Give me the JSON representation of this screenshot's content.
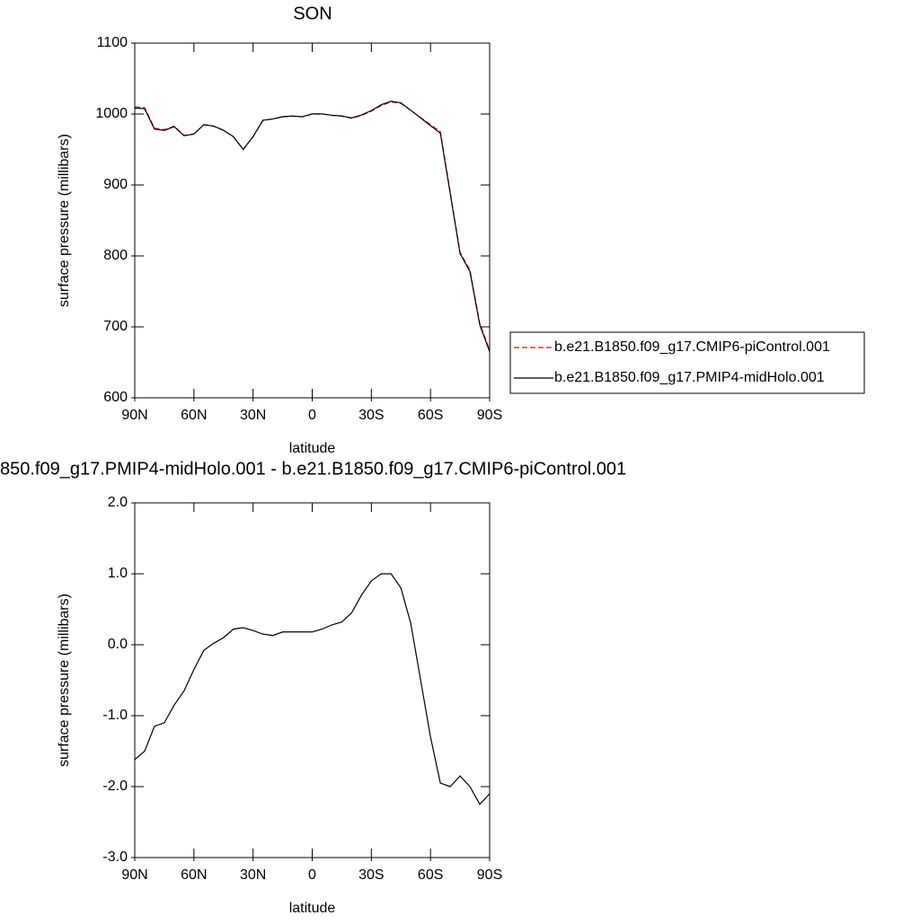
{
  "chart_data": [
    {
      "type": "line",
      "title": "SON",
      "xlabel": "latitude",
      "ylabel": "surface pressure (millibars)",
      "x": [
        90,
        85,
        80,
        75,
        70,
        65,
        60,
        55,
        50,
        45,
        40,
        35,
        30,
        25,
        20,
        15,
        10,
        5,
        0,
        -5,
        -10,
        -15,
        -20,
        -25,
        -30,
        -35,
        -40,
        -45,
        -50,
        -55,
        -60,
        -65,
        -70,
        -75,
        -80,
        -85,
        -90
      ],
      "series": [
        {
          "name": "b.e21.B1850.f09_g17.CMIP6-piControl.001",
          "color": "#ff0000",
          "line_style": "dashed",
          "values": [
            1010,
            1009,
            980,
            978,
            983,
            970,
            972,
            985,
            983,
            977,
            968,
            950,
            968,
            991,
            993,
            996,
            997,
            996,
            1000,
            1000,
            998,
            997,
            994,
            998,
            1004,
            1012,
            1017,
            1015,
            1005,
            995,
            985,
            975,
            890,
            805,
            780,
            705,
            667
          ]
        },
        {
          "name": "b.e21.B1850.f09_g17.PMIP4-midHolo.001",
          "color": "#000000",
          "line_style": "solid",
          "values": [
            1008.4,
            1007.5,
            978.9,
            976.9,
            982.2,
            969.4,
            971.7,
            984.9,
            983,
            977.1,
            968.2,
            950.2,
            968.2,
            991.2,
            993.1,
            996.2,
            997.2,
            996.2,
            1000.2,
            1000.2,
            998.3,
            997.3,
            994.5,
            998.7,
            1004.9,
            1013,
            1018,
            1015.8,
            1005.3,
            994.5,
            983.7,
            973,
            888,
            803.2,
            778,
            702.8,
            664.9
          ]
        }
      ],
      "xlim": [
        90,
        -90
      ],
      "xticks": [
        {
          "value": 90,
          "label": "90N"
        },
        {
          "value": 60,
          "label": "60N"
        },
        {
          "value": 30,
          "label": "30N"
        },
        0,
        {
          "value": -30,
          "label": "30S"
        },
        {
          "value": -60,
          "label": "60S"
        },
        {
          "value": -90,
          "label": "90S"
        }
      ],
      "ylim": [
        600,
        1100
      ],
      "yticks": [
        600,
        700,
        800,
        900,
        1000,
        1100
      ],
      "legend": "right"
    },
    {
      "type": "line",
      "title": "850.f09_g17.PMIP4-midHolo.001 - b.e21.B1850.f09_g17.CMIP6-piControl.001",
      "xlabel": "latitude",
      "ylabel": "surface pressure (millibars)",
      "x": [
        90,
        85,
        80,
        75,
        70,
        65,
        60,
        55,
        50,
        45,
        40,
        35,
        30,
        25,
        20,
        15,
        10,
        5,
        0,
        -5,
        -10,
        -15,
        -20,
        -25,
        -30,
        -35,
        -40,
        -45,
        -50,
        -55,
        -60,
        -65,
        -70,
        -75,
        -80,
        -85,
        -90
      ],
      "values": [
        -1.62,
        -1.5,
        -1.15,
        -1.1,
        -0.85,
        -0.65,
        -0.35,
        -0.08,
        0.02,
        0.1,
        0.22,
        0.24,
        0.2,
        0.15,
        0.13,
        0.18,
        0.18,
        0.18,
        0.18,
        0.22,
        0.28,
        0.32,
        0.45,
        0.7,
        0.9,
        1.0,
        1.0,
        0.8,
        0.3,
        -0.5,
        -1.3,
        -1.95,
        -2.0,
        -1.85,
        -2.0,
        -2.25,
        -2.1
      ],
      "color": "#000000",
      "xlim": [
        90,
        -90
      ],
      "xticks": [
        {
          "value": 90,
          "label": "90N"
        },
        {
          "value": 60,
          "label": "60N"
        },
        {
          "value": 30,
          "label": "30N"
        },
        0,
        {
          "value": -30,
          "label": "30S"
        },
        {
          "value": -60,
          "label": "60S"
        },
        {
          "value": -90,
          "label": "90S"
        }
      ],
      "ylim": [
        -3,
        2
      ],
      "yticks": [
        {
          "value": -3,
          "label": "-3.0"
        },
        {
          "value": -2,
          "label": "-2.0"
        },
        {
          "value": -1,
          "label": "-1.0"
        },
        {
          "value": 0,
          "label": "0.0"
        },
        {
          "value": 1,
          "label": "1.0"
        },
        {
          "value": 2,
          "label": "2.0"
        }
      ]
    }
  ]
}
